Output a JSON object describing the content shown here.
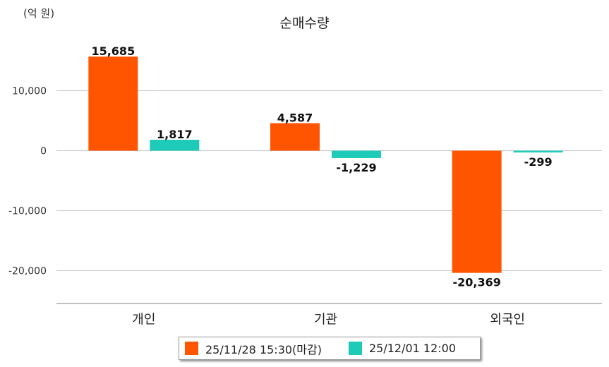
{
  "chart_data": {
    "type": "bar",
    "title": "순매수량",
    "unit_label": "(억 원)",
    "categories": [
      "개인",
      "기관",
      "외국인"
    ],
    "series": [
      {
        "name": "25/11/28 15:30(마감)",
        "color": "#ff5500",
        "values": [
          15685,
          4587,
          -20369
        ],
        "labels": [
          "15,685",
          "4,587",
          "-20,369"
        ]
      },
      {
        "name": "25/12/01 12:00",
        "color": "#1ecbb8",
        "values": [
          1817,
          -1229,
          -299
        ],
        "labels": [
          "1,817",
          "-1,229",
          "-299"
        ]
      }
    ],
    "y_ticks": [
      10000,
      0,
      -10000,
      -20000
    ],
    "y_tick_labels": [
      "10,000",
      "0",
      "-10,000",
      "-20,000"
    ],
    "ylim": [
      -25500,
      17500
    ],
    "grid": true,
    "legend_position": "bottom"
  }
}
